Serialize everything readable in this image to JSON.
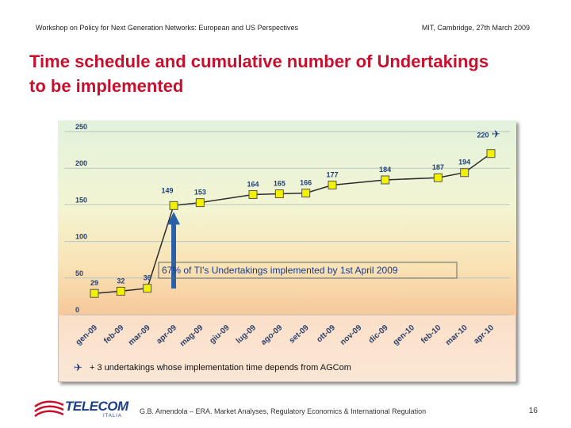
{
  "header": {
    "left": "Workshop on Policy for Next Generation Networks: European and US Perspectives",
    "right": "MIT, Cambridge, 27th March 2009"
  },
  "title": {
    "line1": "Time schedule and cumulative number of Undertakings",
    "line2": "to be implemented"
  },
  "chart_data": {
    "type": "line",
    "categories": [
      "gen-09",
      "feb-09",
      "mar-09",
      "apr-09",
      "mag-09",
      "giu-09",
      "lug-09",
      "ago-09",
      "set-09",
      "ott-09",
      "nov-09",
      "dic-09",
      "gen-10",
      "feb-10",
      "mar-10",
      "apr-10"
    ],
    "points": [
      {
        "category": "gen-09",
        "value": 29
      },
      {
        "category": "feb-09",
        "value": 32
      },
      {
        "category": "mar-09",
        "value": 36
      },
      {
        "category": "apr-09",
        "value": 149
      },
      {
        "category": "mag-09",
        "value": 153
      },
      {
        "category": "lug-09",
        "value": 164
      },
      {
        "category": "ago-09",
        "value": 165
      },
      {
        "category": "set-09",
        "value": 166
      },
      {
        "category": "ott-09",
        "value": 177
      },
      {
        "category": "dic-09",
        "value": 184
      },
      {
        "category": "feb-10",
        "value": 187
      },
      {
        "category": "mar-10",
        "value": 194
      },
      {
        "category": "apr-10",
        "value": 220
      }
    ],
    "y_ticks": [
      "250",
      "200",
      "150",
      "100",
      "50",
      "0"
    ],
    "ylim": [
      0,
      250
    ],
    "annotation": "67% of TI's Undertakings implemented by 1st April 2009",
    "legend_note": "+ 3 undertakings whose implementation time depends from AGCom",
    "colors": {
      "line": "#2a2a2a",
      "marker_fill": "#f2f200",
      "marker_stroke": "#555555",
      "arrow": "#2b5fa8",
      "label": "#1f3f7a"
    }
  },
  "footer": {
    "logo_text": "TELECOM",
    "logo_sub": "ITALIA",
    "text": "G.B. Amendola – ERA. Market Analyses, Regulatory Economics & International Regulation",
    "page": "16"
  }
}
